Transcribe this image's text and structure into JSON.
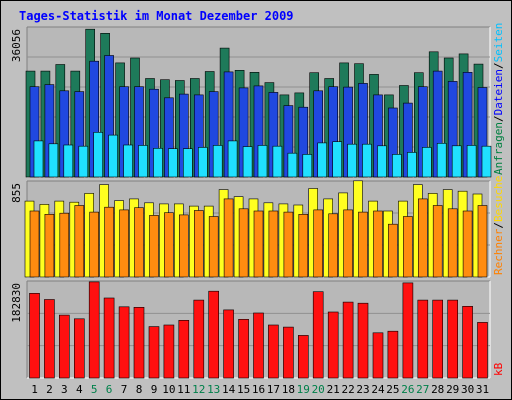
{
  "chart_data": {
    "type": "bar",
    "title": "Tages-Statistik im Monat Dezember 2009",
    "categories": [
      "1",
      "2",
      "3",
      "4",
      "5",
      "6",
      "7",
      "8",
      "9",
      "10",
      "11",
      "12",
      "13",
      "14",
      "15",
      "16",
      "17",
      "18",
      "19",
      "20",
      "21",
      "22",
      "23",
      "24",
      "25",
      "26",
      "27",
      "28",
      "29",
      "30",
      "31"
    ],
    "weekend_days": [
      "5",
      "6",
      "12",
      "13",
      "19",
      "20",
      "26",
      "27"
    ],
    "panels": [
      {
        "id": "traffic",
        "axis_max_label": "36056",
        "ylim": [
          0,
          36056
        ],
        "right_label": [
          {
            "text": "Anfragen",
            "color": "#008040"
          },
          {
            "text": "/",
            "color": "#000000"
          },
          {
            "text": "Dateien",
            "color": "#0000FF"
          },
          {
            "text": "/",
            "color": "#000000"
          },
          {
            "text": "Seiten",
            "color": "#00C0FF"
          }
        ],
        "series": [
          {
            "name": "Anfragen",
            "color": "#1E7A5A",
            "values": [
              25800,
              25800,
              27400,
              25800,
              36000,
              35000,
              27800,
              29000,
              24000,
              23700,
              23500,
              24000,
              25700,
              31400,
              26000,
              25500,
              23000,
              20000,
              20500,
              25400,
              24000,
              27800,
              27600,
              25000,
              20000,
              22300,
              25400,
              30500,
              29000,
              30000,
              27500
            ]
          },
          {
            "name": "Dateien",
            "color": "#2048E0",
            "values": [
              22000,
              22500,
              21000,
              20800,
              28200,
              29600,
              22000,
              22000,
              21400,
              19300,
              20200,
              20000,
              20800,
              25600,
              21700,
              22200,
              20600,
              17400,
              17000,
              21000,
              22000,
              21900,
              22800,
              20000,
              16800,
              18000,
              22000,
              25800,
              23300,
              25500,
              21800
            ]
          },
          {
            "name": "Seiten",
            "color": "#20E0FF",
            "values": [
              8800,
              8100,
              7800,
              7500,
              10900,
              10200,
              7800,
              7700,
              7000,
              6900,
              6900,
              7200,
              7700,
              8800,
              7400,
              7700,
              7500,
              5800,
              5500,
              8300,
              8600,
              8000,
              8000,
              7600,
              5500,
              6000,
              7200,
              8200,
              7600,
              7700,
              7500
            ]
          }
        ]
      },
      {
        "id": "visits",
        "axis_max_label": "855",
        "ylim": [
          0,
          855
        ],
        "right_label": [
          {
            "text": "Rechner",
            "color": "#FF8000"
          },
          {
            "text": "/",
            "color": "#000000"
          },
          {
            "text": "Besuche",
            "color": "#FFD700"
          }
        ],
        "series": [
          {
            "name": "Besuche",
            "color": "#FFFF20",
            "values": [
              690,
              660,
              690,
              680,
              760,
              840,
              695,
              710,
              675,
              665,
              665,
              645,
              645,
              795,
              730,
              710,
              675,
              665,
              655,
              805,
              710,
              765,
              875,
              690,
              600,
              690,
              840,
              760,
              795,
              780,
              755
            ]
          },
          {
            "name": "Rechner",
            "color": "#FF8C10",
            "values": [
              600,
              570,
              580,
              650,
              590,
              635,
              610,
              630,
              560,
              585,
              565,
              605,
              550,
              710,
              620,
              600,
              600,
              590,
              570,
              610,
              575,
              610,
              590,
              600,
              480,
              550,
              710,
              650,
              620,
              600,
              650
            ]
          }
        ]
      },
      {
        "id": "volume",
        "axis_max_label": "182830",
        "ylim": [
          0,
          182830
        ],
        "right_label": [
          {
            "text": "kB",
            "color": "#FF0000"
          }
        ],
        "series": [
          {
            "name": "kB",
            "color": "#FF1010",
            "values": [
              163000,
              151000,
              121000,
              114000,
              185000,
              154000,
              137000,
              136000,
              99000,
              102000,
              111000,
              150000,
              167000,
              131000,
              113000,
              125000,
              102000,
              98000,
              82000,
              166000,
              127000,
              146000,
              144000,
              87000,
              90000,
              183000,
              150000,
              150000,
              150000,
              138000,
              107000
            ]
          }
        ]
      }
    ]
  }
}
